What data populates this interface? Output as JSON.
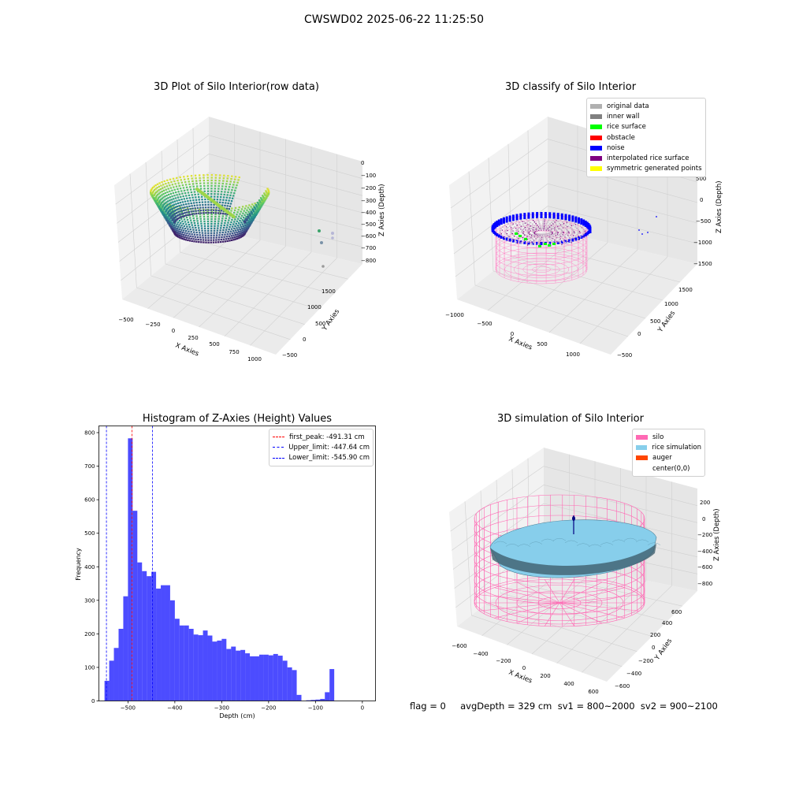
{
  "suptitle": "CWSWD02 2025-06-22 11:25:50",
  "footer": "flag = 0     avgDepth = 329 cm  sv1 = 800~2000  sv2 = 900~2100",
  "chart_data": [
    {
      "id": "raw",
      "type": "scatter3d",
      "title": "3D Plot of Silo Interior(row data)",
      "xlabel": "X Axies",
      "ylabel": "Y Axies",
      "zlabel": "Z Axies (Depth)",
      "x_ticks": [
        "−500",
        "−250",
        "0",
        "250",
        "500",
        "750",
        "1000"
      ],
      "y_ticks": [
        "−500",
        "0",
        "500",
        "1000",
        "1500"
      ],
      "z_ticks": [
        "0",
        "−100",
        "−200",
        "−300",
        "−400",
        "−500",
        "−600",
        "−700",
        "−800"
      ],
      "colormap": "viridis",
      "grid": true
    },
    {
      "id": "classify",
      "type": "scatter3d",
      "title": "3D classify of Silo Interior",
      "xlabel": "X Axies",
      "ylabel": "Y Axies",
      "zlabel": "Z Axies (Depth)",
      "x_ticks": [
        "−1000",
        "−500",
        "0",
        "500",
        "1000"
      ],
      "y_ticks": [
        "−500",
        "0",
        "500",
        "1000",
        "1500"
      ],
      "z_ticks": [
        "500",
        "0",
        "−500",
        "−1000",
        "−1500"
      ],
      "legend_position": "top-right",
      "legend": [
        {
          "label": "original data",
          "color": "#b0b0b0"
        },
        {
          "label": "inner wall",
          "color": "#808080"
        },
        {
          "label": "rice surface",
          "color": "#00ff00"
        },
        {
          "label": "obstacle",
          "color": "#ff0000"
        },
        {
          "label": "noise",
          "color": "#0000ff"
        },
        {
          "label": "interpolated rice surface",
          "color": "#800080"
        },
        {
          "label": "symmetric generated points",
          "color": "#ffff00"
        }
      ],
      "grid": true
    },
    {
      "id": "hist",
      "type": "bar",
      "title": "Histogram of Z-Axies (Height) Values",
      "xlabel": "Depth (cm)",
      "ylabel": "Frequency",
      "xlim": [
        -562,
        28
      ],
      "ylim": [
        0,
        820
      ],
      "x_ticks": [
        -500,
        -400,
        -300,
        -200,
        -100,
        0
      ],
      "x_tick_labels": [
        "−500",
        "−400",
        "−300",
        "−200",
        "−100",
        "0"
      ],
      "y_ticks": [
        0,
        100,
        200,
        300,
        400,
        500,
        600,
        700,
        800
      ],
      "bin_width": 10,
      "bin_edges_start": -550,
      "values": [
        60,
        120,
        158,
        215,
        312,
        783,
        567,
        413,
        387,
        372,
        385,
        335,
        345,
        345,
        300,
        245,
        225,
        225,
        215,
        198,
        196,
        210,
        195,
        177,
        180,
        185,
        155,
        162,
        150,
        152,
        142,
        133,
        133,
        138,
        138,
        136,
        140,
        135,
        120,
        100,
        92,
        18,
        0,
        2,
        3,
        4,
        6,
        26,
        95
      ],
      "color": "#0000ff",
      "vlines": [
        {
          "label": "first_peak: -491.31 cm",
          "x": -491.31,
          "color": "#ff0000"
        },
        {
          "label": "Upper_limit: -447.64 cm",
          "x": -447.64,
          "color": "#0000ff"
        },
        {
          "label": "Lower_limit: -545.90 cm",
          "x": -545.9,
          "color": "#0000ff"
        }
      ],
      "legend_position": "top-right",
      "grid": false
    },
    {
      "id": "sim",
      "type": "surface3d",
      "title": "3D simulation of Silo Interior",
      "xlabel": "X Axies",
      "ylabel": "Y Axies",
      "zlabel": "Z Axies (Depth)",
      "x_ticks": [
        "−600",
        "−400",
        "−200",
        "0",
        "200",
        "400",
        "600"
      ],
      "y_ticks": [
        "−600",
        "−400",
        "−200",
        "0",
        "200",
        "400",
        "600"
      ],
      "z_ticks": [
        "200",
        "0",
        "−200",
        "−400",
        "−600",
        "−800"
      ],
      "legend_position": "top-right",
      "legend": [
        {
          "label": "silo",
          "color": "#ff69b4"
        },
        {
          "label": "rice simulation",
          "color": "#87ceeb"
        },
        {
          "label": "auger",
          "color": "#ff4500"
        },
        {
          "label": "center(0,0)",
          "color": ""
        }
      ],
      "grid": true
    }
  ]
}
